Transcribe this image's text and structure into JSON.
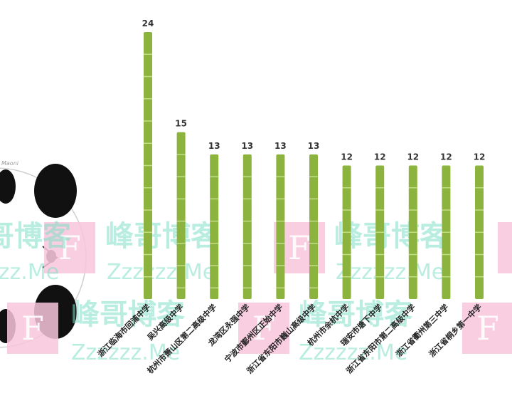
{
  "chart_data": {
    "type": "bar",
    "categories": [
      "浙江临海市回浦中学",
      "吴兴高级中学",
      "杭州市萧山区第二高级中学",
      "龙湾区永强中学",
      "宁波市鄞州区正始中学",
      "浙江省东阳市巍山高级中学",
      "杭州市余杭中学",
      "瑞安市塘下中学",
      "浙江省东阳市第二高级中学",
      "浙江省衢州第三中学",
      "浙江省桐乡第一中学"
    ],
    "values": [
      24,
      15,
      13,
      13,
      13,
      13,
      12,
      12,
      12,
      12,
      12
    ],
    "ylim": [
      0,
      24
    ],
    "bar_color": "#8db33f",
    "segment_color": "#c3dd86",
    "label_color": "#333333"
  },
  "watermark": {
    "chinese": "峰哥博客",
    "english": "Zzzzzz.Me",
    "letter": "F",
    "pink": "#f8c5da",
    "teal": "#7fe0c8"
  },
  "mascot": {
    "icon": "panda-icon",
    "scribble": "Maoni"
  }
}
